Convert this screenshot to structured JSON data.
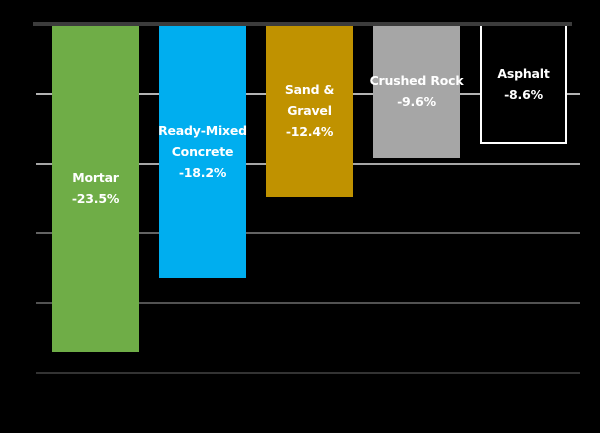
{
  "chart_data": {
    "type": "bar",
    "orientation": "vertical",
    "categories": [
      "Mortar",
      "Ready-Mixed Concrete",
      "Sand & Gravel",
      "Crushed Rock",
      "Asphalt"
    ],
    "values": [
      -23.5,
      -18.2,
      -12.4,
      -9.6,
      -8.6
    ],
    "value_labels": [
      "-23.5%",
      "-18.2%",
      "-12.4%",
      "-9.6%",
      "-8.6%"
    ],
    "label_lines": [
      [
        "Mortar"
      ],
      [
        "Ready-Mixed",
        "Concrete"
      ],
      [
        "Sand &",
        "Gravel"
      ],
      [
        "Crushed Rock"
      ],
      [
        "Asphalt"
      ]
    ],
    "bar_colors": [
      "#6fad47",
      "#00aeef",
      "#c09200",
      "#a6a6a6",
      "#000000"
    ],
    "bar_border_colors": [
      null,
      null,
      null,
      null,
      "#ffffff"
    ],
    "label_color": "#ffffff",
    "ylim": [
      -25,
      0
    ],
    "gridlines_y": [
      -5,
      -10,
      -15,
      -20,
      -25
    ],
    "gridline_colors": [
      "#b3b3b3",
      "#a6a6a6",
      "#636363",
      "#525252",
      "#333333"
    ],
    "zero_axis_color": "#3c3c3c",
    "background_color": "#000000",
    "legend": "none",
    "axis_tick_labels_visible": false,
    "data_labels_inside_bars": true
  }
}
